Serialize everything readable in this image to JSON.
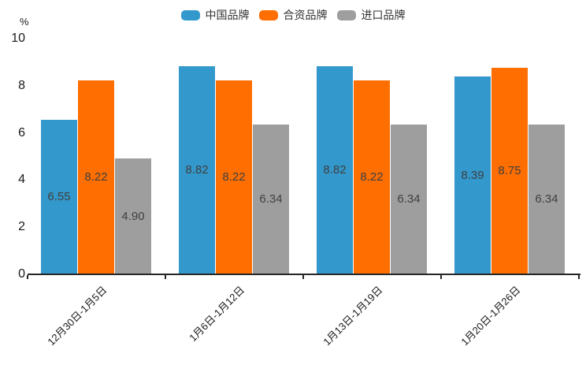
{
  "legend": {
    "items": [
      {
        "label": "中国品牌",
        "color": "#3398cc"
      },
      {
        "label": "合资品牌",
        "color": "#ff6e00"
      },
      {
        "label": "进口品牌",
        "color": "#9e9e9e"
      }
    ]
  },
  "chart_data": {
    "type": "bar",
    "title": "",
    "unit_label": "%",
    "categories": [
      "12月30日-1月5日",
      "1月6日-1月12日",
      "1月13日-1月19日",
      "1月20日-1月26日"
    ],
    "series": [
      {
        "name": "中国品牌",
        "color": "#3398cc",
        "values": [
          6.55,
          8.82,
          8.82,
          8.39
        ]
      },
      {
        "name": "合资品牌",
        "color": "#ff6e00",
        "values": [
          8.22,
          8.22,
          8.22,
          8.75
        ]
      },
      {
        "name": "进口品牌",
        "color": "#9e9e9e",
        "values": [
          4.9,
          6.34,
          6.34,
          6.34
        ]
      }
    ],
    "value_label_decimals": 2,
    "xlabel": "",
    "ylabel": "%",
    "ylim": [
      0,
      10
    ],
    "yticks": [
      0,
      2,
      4,
      6,
      8,
      10
    ],
    "grid": false,
    "legend_position": "top-center",
    "colors": {
      "axis": "#262626",
      "bar_value_text": "#404040",
      "tick_text": "#1a1a1a"
    }
  }
}
